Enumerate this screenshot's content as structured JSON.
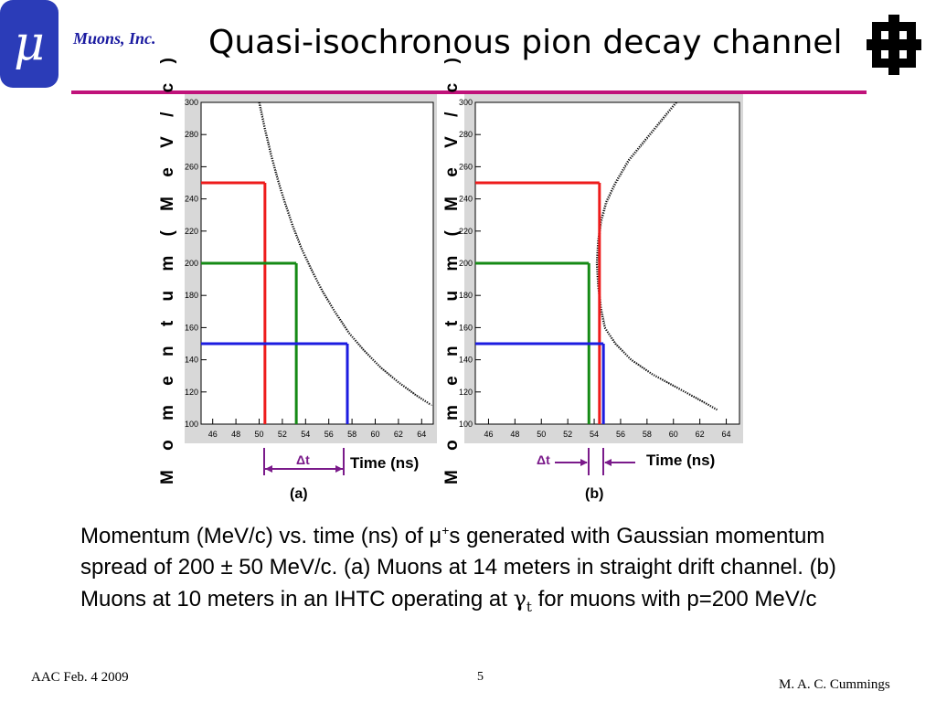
{
  "header": {
    "logo_symbol": "μ",
    "company": "Muons, Inc.",
    "title": "Quasi-isochronous pion decay channel",
    "lab_logo_icon": "fermilab-logo-icon"
  },
  "colors": {
    "brand_blue": "#2b3cb8",
    "rule_magenta": "#c0127a",
    "company_text": "#1a1aa0",
    "delta_purple": "#7a1a8a",
    "red": "#ee1b1b",
    "green": "#158a15",
    "blue": "#1c1ce0"
  },
  "figure": {
    "ylabel": "M o m e n t u m  ( M e V / c )",
    "xlabel": "Time (ns)",
    "delta_label": "Δt",
    "panels": [
      {
        "id": "(a)"
      },
      {
        "id": "(b)"
      }
    ]
  },
  "chart_data": [
    {
      "type": "scatter",
      "panel": "(a)",
      "xlabel": "Time (ns)",
      "ylabel": "M o m e n t u m  ( M e V / c )",
      "xlim": [
        45,
        65
      ],
      "ylim": [
        100,
        300
      ],
      "xticks": [
        46,
        48,
        50,
        52,
        54,
        56,
        58,
        60,
        62,
        64
      ],
      "yticks": [
        100,
        120,
        140,
        160,
        180,
        200,
        220,
        240,
        260,
        280,
        300
      ],
      "curve": {
        "x": [
          50.0,
          50.5,
          51.0,
          51.6,
          52.2,
          52.9,
          53.6,
          54.5,
          55.5,
          56.6,
          57.7,
          59.0,
          60.5,
          62.0,
          63.5,
          64.8
        ],
        "y": [
          300,
          283,
          268,
          252,
          238,
          223,
          210,
          196,
          182,
          169,
          157,
          146,
          135,
          126,
          118,
          112
        ]
      },
      "markers": [
        {
          "momentum": 250,
          "time": 50.5,
          "color": "red"
        },
        {
          "momentum": 200,
          "time": 53.2,
          "color": "green"
        },
        {
          "momentum": 150,
          "time": 57.6,
          "color": "blue"
        }
      ]
    },
    {
      "type": "scatter",
      "panel": "(b)",
      "xlabel": "Time (ns)",
      "ylabel": "M o m e n t u m  ( M e V / c )",
      "xlim": [
        45,
        65
      ],
      "ylim": [
        100,
        300
      ],
      "xticks": [
        46,
        48,
        50,
        52,
        54,
        56,
        58,
        60,
        62,
        64
      ],
      "yticks": [
        100,
        120,
        140,
        160,
        180,
        200,
        220,
        240,
        260,
        280,
        300
      ],
      "curve": {
        "x": [
          60.2,
          59.0,
          57.8,
          56.6,
          55.6,
          54.9,
          54.5,
          54.3,
          54.2,
          54.3,
          54.5,
          54.8,
          55.6,
          56.8,
          58.4,
          60.2,
          62.0,
          63.3
        ],
        "y": [
          300,
          288,
          276,
          264,
          250,
          238,
          226,
          214,
          200,
          186,
          172,
          160,
          150,
          140,
          131,
          123,
          115,
          109
        ]
      },
      "markers": [
        {
          "momentum": 250,
          "time": 54.4,
          "color": "red"
        },
        {
          "momentum": 200,
          "time": 53.6,
          "color": "green"
        },
        {
          "momentum": 150,
          "time": 54.7,
          "color": "blue"
        }
      ]
    }
  ],
  "caption": {
    "line1_a": "Momentum (MeV/c) vs. time (ns) of μ",
    "line1_sup": "+",
    "line1_b": "s generated with Gaussian momentum spread of 200 ± 50 MeV/c.  (a) Muons at 14 meters in straight drift channel.  (b) Muons at 10 meters in an IHTC operating at ",
    "gamma": "γ",
    "gamma_sub": "t",
    "line_end": " for muons with p=200 MeV/c"
  },
  "footer": {
    "left": "AAC Feb. 4 2009",
    "page": "5",
    "right": "M. A. C. Cummings"
  }
}
